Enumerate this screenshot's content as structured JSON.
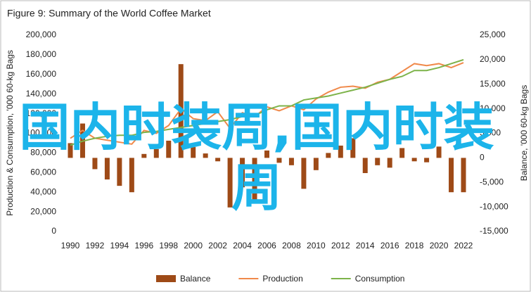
{
  "chart_data": {
    "type": "combo",
    "title": "Figure 9: Summary of the World Coffee Market",
    "ylabel": "Production & Consumption, '000 60-kg Bags",
    "y2label": "Balance, '000 60-kg Bags",
    "overlay_text": "国内时装周,国内时装周",
    "legend": "bottom",
    "x": [
      1990,
      1991,
      1992,
      1993,
      1994,
      1995,
      1996,
      1997,
      1998,
      1999,
      2000,
      2001,
      2002,
      2003,
      2004,
      2005,
      2006,
      2007,
      2008,
      2009,
      2010,
      2011,
      2012,
      2013,
      2014,
      2015,
      2016,
      2017,
      2018,
      2019,
      2020,
      2021,
      2022
    ],
    "xlim": [
      1990,
      2022
    ],
    "xticks": [
      1990,
      1992,
      1994,
      1996,
      1998,
      2000,
      2002,
      2004,
      2006,
      2008,
      2010,
      2012,
      2014,
      2016,
      2018,
      2020,
      2022
    ],
    "ylim": [
      0,
      200000
    ],
    "yticks": [
      0,
      {
        "value": 20000,
        "label": "20,000"
      },
      {
        "value": 40000,
        "label": "40,000"
      },
      {
        "value": 60000,
        "label": "60,000"
      },
      {
        "value": 80000,
        "label": "80,000"
      },
      {
        "value": 100000,
        "label": "100,000"
      },
      {
        "value": 120000,
        "label": "120,000"
      },
      {
        "value": 140000,
        "label": "140,000"
      },
      {
        "value": 160000,
        "label": "160,000"
      },
      {
        "value": 180000,
        "label": "180,000"
      },
      {
        "value": 200000,
        "label": "200,000"
      }
    ],
    "y2lim": [
      -15000,
      25000
    ],
    "y2ticks": [
      {
        "value": -15000,
        "label": "-15,000"
      },
      {
        "value": -10000,
        "label": "-10,000"
      },
      {
        "value": -5000,
        "label": "-5,000"
      },
      0,
      {
        "value": 5000,
        "label": "5,000"
      },
      {
        "value": 10000,
        "label": "10,000"
      },
      {
        "value": 15000,
        "label": "15,000"
      },
      {
        "value": 20000,
        "label": "20,000"
      },
      {
        "value": 25000,
        "label": "25,000"
      }
    ],
    "series": [
      {
        "name": "Balance",
        "type": "bar",
        "axis": "y2",
        "color": "#9e4a17",
        "values": [
          3000,
          7000,
          -2300,
          -4400,
          -5700,
          -7000,
          800,
          1800,
          3500,
          19100,
          2200,
          900,
          -700,
          -10100,
          -6000,
          -9100,
          1500,
          -1000,
          -1500,
          -6300,
          -2500,
          1000,
          2500,
          4000,
          -3100,
          -1500,
          -2000,
          2000,
          -700,
          -900,
          2300,
          -7000,
          -7000
        ]
      },
      {
        "name": "Production",
        "type": "line",
        "color": "#f0894a",
        "values": [
          95000,
          103000,
          95000,
          93000,
          91000,
          89000,
          103000,
          100000,
          108000,
          125000,
          115000,
          113000,
          122000,
          105000,
          121000,
          117000,
          127000,
          123000,
          128000,
          124000,
          135000,
          142000,
          147000,
          148000,
          146000,
          152000,
          155000,
          163000,
          171000,
          169000,
          171000,
          167000,
          172000
        ]
      },
      {
        "name": "Consumption",
        "type": "line",
        "color": "#7db34a",
        "values": [
          88000,
          92000,
          95000,
          97000,
          98000,
          98000,
          101000,
          102000,
          104000,
          106000,
          108000,
          110000,
          112000,
          114000,
          117000,
          118000,
          124000,
          128000,
          128000,
          134000,
          136000,
          138000,
          141000,
          144000,
          147000,
          151000,
          155000,
          158000,
          164000,
          164000,
          167000,
          171000,
          175000
        ]
      }
    ]
  }
}
